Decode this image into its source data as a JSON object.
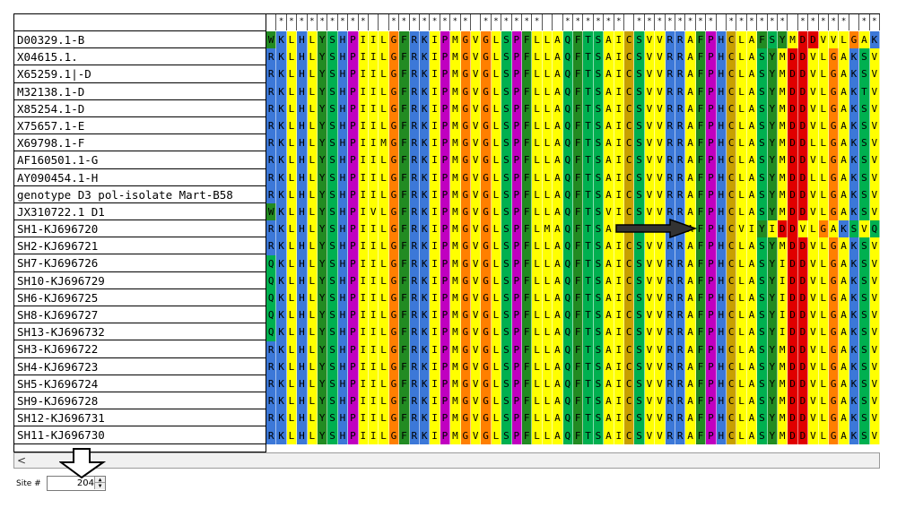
{
  "sequences": [
    {
      "name": "D00329.1-B",
      "seq": "WKLHLYSHPIILGFRKIPMGVGLSPFLLAQFTSAICSVVRRAFPHCLAFSYMDDVVLGAKSVQHLESL"
    },
    {
      "name": "X04615.1.",
      "seq": "RKLHLYSHPIILGFRKIPMGVGLSPFLLAQFTSAICSVVRRAFPHCLASYMDDVLGAKSVQHLESL"
    },
    {
      "name": "X65259.1|-D",
      "seq": "RKLHLYSHPIILGFRKIPMGVGLSPFLLAQFTSAICSVVRRAFPHCLASYMDDVLGAKSVQHLESL"
    },
    {
      "name": "M32138.1-D",
      "seq": "RKLHLYSHPIILGFRKIPMGVGLSPFLLAQFTSAICSVVRRAFPHCLASYMDDVLGAKTVHHLESL"
    },
    {
      "name": "X85254.1-D",
      "seq": "RKLHLYSHPIILGFRKIPMGVGLSPFLLAQFTSAICSVVRRAFPHCLASYMDDVLGAKSVQHLESL"
    },
    {
      "name": "X75657.1-E",
      "seq": "RKLHLYSHPIILGFRKIPMGVGLSPFLLAQFTSAICSVVRRAFPHCLASYMDDVLGAKSVQHLESL"
    },
    {
      "name": "X69798.1-F",
      "seq": "RKLHLYSHPIIMGFRKIPMGVGLSPFLLAQFTSAICSVVRRAFPHCLASYMDDLLGAKSVQHLESL"
    },
    {
      "name": "AF160501.1-G",
      "seq": "RKLHLYSHPIILGFRKIPMGVGLSPFLLAQFTSAICSVVRRAFPHCLASYMDDVLGAKSVQHLESL"
    },
    {
      "name": "AY090454.1-H",
      "seq": "RKLHLYSHPIILGFRKIPMGVGLSPFLLAQFTSAICSVVRRAFPHCLASYMDDLLGAKSVQHLESL"
    },
    {
      "name": "genotype D3 pol-isolate Mart-B58",
      "seq": "RKLHLYSHPIILGFRKIPMGVGLSPFLLAQFTSAICSVVRRAFPHCLASYMDDVLGAKSVQHLESL"
    },
    {
      "name": "JX310722.1 D1",
      "seq": "WKLHLYSHPIVLGFRKIPMGVGLSPFLLAQFTSVICSVVRRAFPHCLASYMDDVLGAKSVQRRESL"
    },
    {
      "name": "SH1-KJ696720",
      "seq": "RKLHLYSHPIILGFRKIPMGVGLSPFLMAQFTSAICSVVRRAFPHCVIYIDDVLGAKSVQHLESL"
    },
    {
      "name": "SH2-KJ696721",
      "seq": "RKLHLYSHPIILGFRKIPMGVGLSPFLLAQFTSAICSVVRRAFPHCLASYMDDVLGAKSVQHLESL"
    },
    {
      "name": "SH7-KJ696726",
      "seq": "QKLHLYSHPIILGFRKIPMGVGLSPFLLAQFTSAICSVVRRAFPHCLASYIDDVLGAKSVSHLESL"
    },
    {
      "name": "SH10-KJ696729",
      "seq": "QKLHLYSHPIILGFRKIPMGVGLSPFLLAQFTSAICSVVRRAFPHCLASYIDDVLGAKSVSHLESL"
    },
    {
      "name": "SH6-KJ696725",
      "seq": "QKLHLYSHPIILGFRKIPMGVGLSPFLLAQFTSAICSVVRRAFPHCLASYIDDVLGAKSVSHLESL"
    },
    {
      "name": "SH8-KJ696727",
      "seq": "QKLHLYSHPIILGFRKIPMGVGLSPFLLAQFTSAICSVVRRAFPHCLASYIDDVLGAKSVSHLESL"
    },
    {
      "name": "SH13-KJ696732",
      "seq": "QKLHLYSHPIILGFRKIPMGVGLSPFLLAQFTSAICSVVRRAFPHCLASYIDDVLGAKSVSHLESL"
    },
    {
      "name": "SH3-KJ696722",
      "seq": "RKLHLYSHPIILGFRKIPMGVGLSPFLLAQFTSAICSVVRRAFPHCLASYMDDVLGAKSVQHLESL"
    },
    {
      "name": "SH4-KJ696723",
      "seq": "RKLHLYSHPIILGFRKIPMGVGLSPFLLAQFTSAICSVVRRAFPHCLASYMDDVLGAKSVQHLESL"
    },
    {
      "name": "SH5-KJ696724",
      "seq": "RKLHLYSHPIILGFRKIPMGVGLSPFLLAQFTSAICSVVRRAFPHCLASYMDDVLGAKSVQHLESL"
    },
    {
      "name": "SH9-KJ696728",
      "seq": "RKLHLYSHPIILGFRKIPMGVGLSPFLLAQFTSAICSVVRRAFPHCLASYMDDVLGAKSVQHLESL"
    },
    {
      "name": "SH12-KJ696731",
      "seq": "RKLHLYSHPIILGFRKIPMGVGLSPFLLAQFTSAICSVVRRAFPHCLASYMDDVLGAKSVQHLESL"
    },
    {
      "name": "SH11-KJ696730",
      "seq": "RKLHLYSHPIILGFRKIPMGVGLSPFLLAQFTSAICSVVRRAFPHCLASYMDDVLGAKSVQHLESL"
    }
  ],
  "conservation": " *********  ******** ******  ****** ******** ****** ***** ******** *  * ** ***** *  *  ***",
  "scrollbar": {
    "left_arrow": "<"
  },
  "site": {
    "label": "Site #",
    "value": "204",
    "up": "▲",
    "down": "▼"
  },
  "colors": {
    "G": "#ff7f00",
    "A": "#ffff00",
    "V": "#ffff00",
    "L": "#ffff00",
    "I": "#ffff00",
    "M": "#ffff00",
    "F": "#228b22",
    "W": "#228b22",
    "Y": "#228b22",
    "S": "#00b050",
    "T": "#00b050",
    "C": "#c8a000",
    "N": "#00b050",
    "Q": "#00b050",
    "H": "#3c78d8",
    "K": "#3c78d8",
    "R": "#3c78d8",
    "D": "#e00000",
    "E": "#e00000",
    "P": "#c000c0",
    "default": "#ffffff"
  },
  "icons": {
    "down_arrow": "down-arrow-icon",
    "right_arrow": "right-arrow-icon"
  }
}
